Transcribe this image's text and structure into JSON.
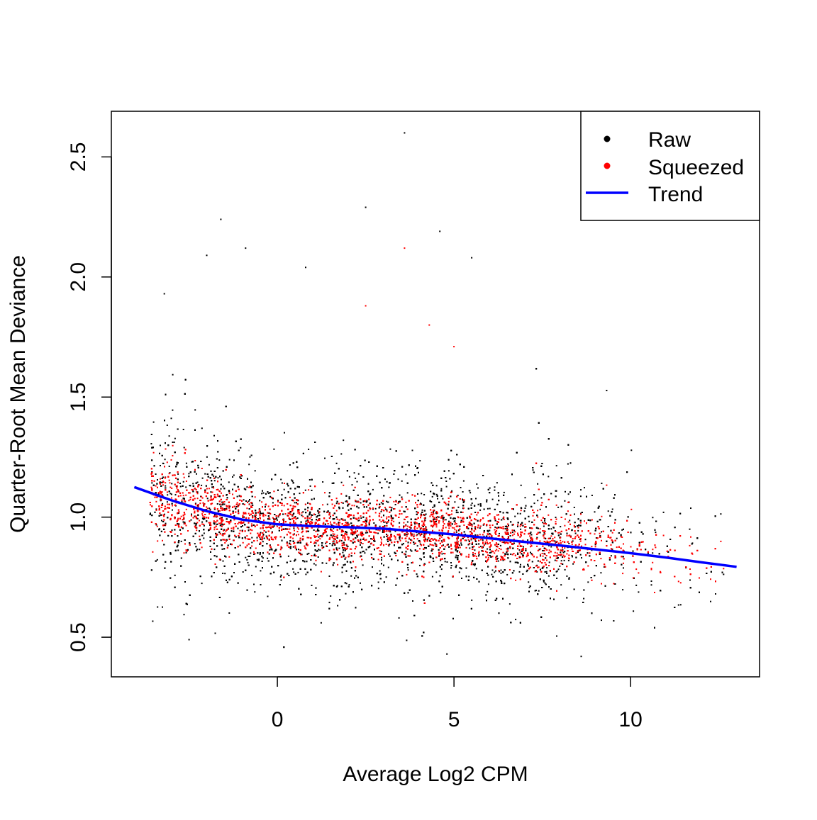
{
  "chart_data": {
    "type": "scatter",
    "title": "",
    "xlabel": "Average Log2 CPM",
    "ylabel": "Quarter-Root Mean Deviance",
    "xlim": [
      -4.7,
      13.65
    ],
    "ylim": [
      0.335,
      2.69
    ],
    "xticks": [
      0,
      5,
      10
    ],
    "xtick_labels": [
      "0",
      "5",
      "10"
    ],
    "yticks": [
      0.5,
      1.0,
      1.5,
      2.0,
      2.5
    ],
    "ytick_labels": [
      "0.5",
      "1.0",
      "1.5",
      "2.0",
      "2.5"
    ],
    "grid": false,
    "legend": {
      "placement": "top-right",
      "entries": [
        {
          "label": "Raw",
          "kind": "point",
          "color": "#000000"
        },
        {
          "label": "Squeezed",
          "kind": "point",
          "color": "#ff0000"
        },
        {
          "label": "Trend",
          "kind": "line",
          "color": "#0000ff"
        }
      ]
    },
    "series": [
      {
        "name": "Raw",
        "color": "#000000",
        "x_range": [
          -4.0,
          13.0
        ],
        "notable_points": [
          [
            3.6,
            2.6
          ],
          [
            2.5,
            2.29
          ],
          [
            4.6,
            2.19
          ],
          [
            -1.6,
            2.24
          ],
          [
            -0.9,
            2.12
          ],
          [
            -2.0,
            2.09
          ],
          [
            5.5,
            2.08
          ],
          [
            0.8,
            2.04
          ],
          [
            -3.2,
            1.93
          ],
          [
            8.6,
            0.42
          ],
          [
            4.8,
            0.43
          ],
          [
            -2.5,
            0.49
          ]
        ]
      },
      {
        "name": "Squeezed",
        "color": "#ff0000",
        "x_range": [
          -4.0,
          13.0
        ],
        "notable_points": [
          [
            3.6,
            2.12
          ],
          [
            2.5,
            1.88
          ],
          [
            4.3,
            1.8
          ],
          [
            5.0,
            1.71
          ]
        ]
      },
      {
        "name": "Trend",
        "color": "#0000ff",
        "x": [
          -4.05,
          -3.0,
          -2.0,
          -1.0,
          0,
          1,
          2,
          3,
          4,
          5,
          6,
          7,
          8,
          9,
          10,
          11,
          12,
          13
        ],
        "y": [
          1.125,
          1.07,
          1.025,
          0.99,
          0.97,
          0.962,
          0.958,
          0.952,
          0.94,
          0.928,
          0.912,
          0.897,
          0.882,
          0.866,
          0.85,
          0.832,
          0.812,
          0.793
        ]
      }
    ]
  }
}
